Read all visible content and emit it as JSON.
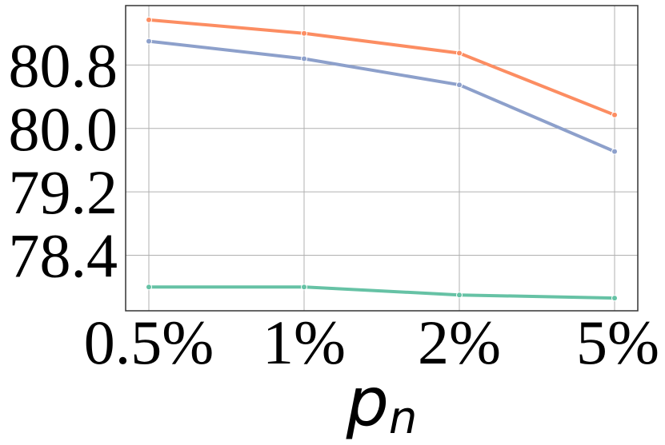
{
  "chart_data": {
    "type": "line",
    "categories": [
      "0.5%",
      "1%",
      "2%",
      "5%"
    ],
    "y_ticks": [
      "78.4",
      "79.2",
      "80.0",
      "80.8"
    ],
    "ylim": [
      77.7,
      81.55
    ],
    "xlabel": "p",
    "xlabel_subscript": "n",
    "grid": true,
    "legend": "none",
    "series": [
      {
        "color": "#fc8d62",
        "values": [
          81.37,
          81.2,
          80.95,
          80.17
        ]
      },
      {
        "color": "#8da0cb",
        "values": [
          81.1,
          80.88,
          80.55,
          79.71
        ]
      },
      {
        "color": "#66c2a5",
        "values": [
          78.0,
          78.0,
          77.9,
          77.86
        ]
      }
    ]
  }
}
